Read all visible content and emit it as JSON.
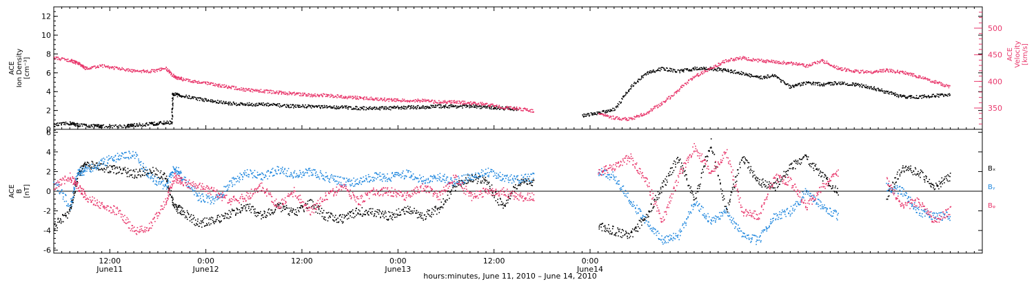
{
  "chart_data": [
    {
      "type": "scatter",
      "panel": "top",
      "left_axis": {
        "label_lines": [
          "ACE",
          "Ion Density",
          "[cm⁻³]"
        ],
        "ylim": [
          0,
          13
        ],
        "ticks": [
          "0",
          "2",
          "4",
          "6",
          "8",
          "10",
          "12"
        ],
        "color": "#000000"
      },
      "right_axis": {
        "label_lines": [
          "ACE",
          "Velocity",
          "[km/s]"
        ],
        "ylim": [
          310,
          540
        ],
        "ticks": [
          "350",
          "400",
          "450",
          "500"
        ],
        "color": "#e8356a"
      },
      "grid": false,
      "series": [
        {
          "color": "#000000",
          "axis": "left",
          "x": [
            0,
            2,
            3,
            5,
            6,
            9,
            10,
            12,
            13,
            14.7,
            14.8,
            16,
            18,
            20,
            22,
            24,
            26,
            28,
            30,
            32,
            34,
            36,
            38,
            40,
            42,
            44,
            46,
            48,
            50,
            52,
            54,
            56,
            58,
            60,
            62,
            64,
            66,
            68,
            70,
            72,
            74,
            76,
            78,
            80,
            82,
            84,
            86,
            88,
            90,
            92,
            94,
            96,
            98,
            100,
            102,
            104,
            106,
            108,
            110,
            112
          ],
          "y": [
            0.5,
            0.7,
            0.5,
            0.4,
            0.4,
            0.4,
            0.5,
            0.6,
            0.7,
            0.8,
            3.8,
            3.6,
            3.3,
            3.0,
            2.8,
            2.7,
            2.7,
            2.6,
            2.5,
            2.5,
            2.4,
            2.4,
            2.3,
            2.3,
            2.3,
            2.4,
            2.4,
            2.5,
            2.5,
            2.5,
            2.4,
            2.3,
            2.2,
            null,
            null,
            null,
            1.5,
            1.8,
            2.2,
            4.5,
            6.0,
            6.5,
            6.2,
            6.5,
            6.5,
            6.3,
            6.0,
            5.5,
            5.8,
            4.5,
            5.0,
            4.8,
            5.0,
            4.8,
            4.5,
            4.0,
            3.5,
            3.5,
            3.6,
            3.8
          ]
        },
        {
          "color": "#e8356a",
          "axis": "right",
          "x": [
            0,
            2,
            3,
            4,
            6,
            8,
            10,
            12,
            14,
            15,
            16,
            18,
            20,
            22,
            24,
            26,
            28,
            30,
            32,
            34,
            36,
            38,
            40,
            42,
            44,
            46,
            48,
            50,
            52,
            54,
            56,
            58,
            60,
            62,
            64,
            66,
            68,
            70,
            72,
            74,
            76,
            78,
            80,
            82,
            84,
            86,
            88,
            90,
            92,
            94,
            96,
            98,
            100,
            102,
            104,
            106,
            108,
            110,
            112
          ],
          "y": [
            445,
            440,
            435,
            425,
            430,
            425,
            420,
            420,
            425,
            410,
            405,
            400,
            395,
            390,
            385,
            383,
            380,
            378,
            375,
            375,
            372,
            370,
            368,
            366,
            365,
            365,
            362,
            362,
            360,
            358,
            352,
            350,
            345,
            null,
            null,
            null,
            340,
            332,
            330,
            342,
            360,
            385,
            410,
            425,
            440,
            445,
            440,
            438,
            435,
            430,
            440,
            425,
            420,
            418,
            422,
            418,
            410,
            400,
            390
          ]
        }
      ]
    },
    {
      "type": "scatter",
      "panel": "bottom",
      "left_axis": {
        "label_lines": [
          "ACE",
          "B",
          "[nT]"
        ],
        "ylim": [
          -6.3,
          6.3
        ],
        "ticks": [
          "-6",
          "-4",
          "-2",
          "0",
          "2",
          "4",
          "6"
        ],
        "color": "#000000"
      },
      "zero_line": true,
      "grid": false,
      "legend_placement": "right",
      "series": [
        {
          "name": "Bₓ",
          "color": "#000000",
          "x": [
            0,
            2,
            3,
            4,
            6,
            8,
            10,
            12,
            14,
            15,
            16,
            18,
            20,
            22,
            24,
            26,
            28,
            30,
            32,
            34,
            36,
            38,
            40,
            42,
            44,
            46,
            48,
            50,
            52,
            54,
            56,
            58,
            60,
            62,
            64,
            66,
            68,
            70,
            72,
            74,
            76,
            78,
            80,
            82,
            84,
            86,
            88,
            90,
            92,
            94,
            96,
            98,
            100,
            102,
            104,
            106,
            108,
            110,
            112
          ],
          "y": [
            -3.5,
            -2.0,
            1.8,
            2.8,
            2.5,
            2.2,
            1.8,
            2.2,
            1.5,
            -1.5,
            -2.0,
            -3.2,
            -3.0,
            -2.2,
            -1.5,
            -2.5,
            -1.5,
            -2.2,
            -1.2,
            -2.5,
            -2.8,
            -2.0,
            -2.2,
            -2.5,
            -1.8,
            -2.5,
            -1.8,
            0.5,
            1.5,
            1.0,
            -1.5,
            1.0,
            1.0,
            null,
            null,
            null,
            -3.5,
            -4.0,
            -4.5,
            -2.5,
            0.5,
            3.5,
            -1.0,
            5.0,
            -2.0,
            3.5,
            1.0,
            0.5,
            2.5,
            3.5,
            1.5,
            0.0,
            null,
            null,
            -0.5,
            2.5,
            2.0,
            0.5,
            1.5
          ]
        },
        {
          "name": "Bᵧ",
          "color": "#1f87de",
          "x": [
            0,
            2,
            3,
            4,
            6,
            8,
            10,
            12,
            14,
            15,
            16,
            18,
            20,
            22,
            24,
            26,
            28,
            30,
            32,
            34,
            36,
            38,
            40,
            42,
            44,
            46,
            48,
            50,
            52,
            54,
            56,
            58,
            60,
            62,
            64,
            66,
            68,
            70,
            72,
            74,
            76,
            78,
            80,
            82,
            84,
            86,
            88,
            90,
            92,
            94,
            96,
            98,
            100,
            102,
            104,
            106,
            108,
            110,
            112
          ],
          "y": [
            1.0,
            -1.5,
            2.0,
            2.2,
            3.0,
            3.5,
            3.8,
            1.5,
            0.5,
            2.5,
            1.5,
            -0.5,
            -1.0,
            0.8,
            2.0,
            1.5,
            2.2,
            1.8,
            2.0,
            1.5,
            1.0,
            1.0,
            1.5,
            1.5,
            1.8,
            1.2,
            1.5,
            1.0,
            1.5,
            2.0,
            1.5,
            1.2,
            1.5,
            null,
            null,
            null,
            2.0,
            1.5,
            -1.0,
            -3.0,
            -5.0,
            -4.5,
            -1.0,
            -3.0,
            -2.0,
            -4.5,
            -5.0,
            -2.5,
            -2.0,
            0.0,
            -1.5,
            -2.5,
            null,
            null,
            0.5,
            0.0,
            -2.0,
            -2.5,
            -2.5
          ]
        },
        {
          "name": "Bᵩ",
          "color": "#e8356a",
          "x": [
            0,
            2,
            3,
            4,
            6,
            8,
            10,
            12,
            14,
            15,
            16,
            18,
            20,
            22,
            24,
            26,
            28,
            30,
            32,
            34,
            36,
            38,
            40,
            42,
            44,
            46,
            48,
            50,
            52,
            54,
            56,
            58,
            60,
            62,
            64,
            66,
            68,
            70,
            72,
            74,
            76,
            78,
            80,
            82,
            84,
            86,
            88,
            90,
            92,
            94,
            96,
            98,
            100,
            102,
            104,
            106,
            108,
            110,
            112
          ],
          "y": [
            0.5,
            1.5,
            0.5,
            -0.5,
            -1.5,
            -2.0,
            -4.0,
            -3.5,
            -1.0,
            1.5,
            1.0,
            0.5,
            0.0,
            -1.0,
            -0.5,
            0.5,
            -1.5,
            0.0,
            -2.0,
            -0.5,
            0.5,
            -1.0,
            0.0,
            0.0,
            -0.5,
            0.5,
            -0.5,
            1.5,
            -0.5,
            0.0,
            0.0,
            -0.5,
            -0.5,
            null,
            null,
            null,
            2.0,
            2.5,
            3.5,
            1.0,
            -3.0,
            1.5,
            4.5,
            2.0,
            4.0,
            -2.0,
            -2.5,
            1.5,
            1.0,
            -1.5,
            0.5,
            2.0,
            null,
            null,
            1.0,
            -1.5,
            -1.0,
            -3.0,
            -1.8
          ]
        }
      ]
    }
  ],
  "x_axis": {
    "xlim": [
      0,
      116
    ],
    "tick_labels": [
      {
        "x": 7,
        "time": "12:00",
        "day": "June11"
      },
      {
        "x": 19,
        "time": "0:00",
        "day": "June12"
      },
      {
        "x": 31,
        "time": "12:00",
        "day": ""
      },
      {
        "x": 43,
        "time": "0:00",
        "day": "June13"
      },
      {
        "x": 55,
        "time": "12:00",
        "day": ""
      },
      {
        "x": 67,
        "time": "0:00",
        "day": "June14"
      }
    ],
    "label": "hours:minutes, June 11, 2010 – June 14, 2010"
  }
}
